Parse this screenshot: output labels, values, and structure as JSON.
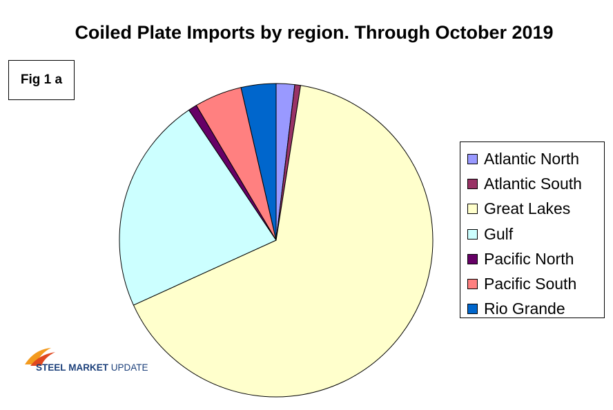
{
  "fig_label": "Fig 1 a",
  "logo": {
    "word1": "STEEL",
    "word2": "MARKET",
    "word3": "UPDATE"
  },
  "chart_data": {
    "type": "pie",
    "title": "Coiled Plate Imports by region. Through October 2019",
    "legend_position": "right",
    "start_angle_deg": 0,
    "direction": "clockwise",
    "slices": [
      {
        "name": "Atlantic North",
        "value": 1.9,
        "color": "#9999ff"
      },
      {
        "name": "Atlantic South",
        "value": 0.6,
        "color": "#993366"
      },
      {
        "name": "Great Lakes",
        "value": 65.7,
        "color": "#ffffcc"
      },
      {
        "name": "Gulf",
        "value": 22.4,
        "color": "#ccffff"
      },
      {
        "name": "Pacific North",
        "value": 0.9,
        "color": "#660066"
      },
      {
        "name": "Pacific South",
        "value": 4.9,
        "color": "#ff8080"
      },
      {
        "name": "Rio Grande",
        "value": 3.6,
        "color": "#0066cc"
      }
    ]
  }
}
